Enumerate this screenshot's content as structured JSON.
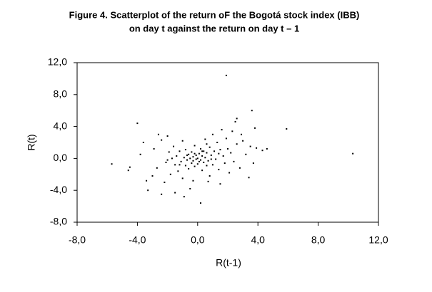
{
  "chart_data": {
    "type": "scatter",
    "title": [
      "Figure 4. Scatterplot of the return oF the Bogotá stock index (IBB)",
      "on day  t against the return on day  t – 1"
    ],
    "xlabel": "R(t-1)",
    "ylabel": "R(t)",
    "color": "#000000",
    "xlim": [
      -8,
      12
    ],
    "ylim": [
      -8,
      12
    ],
    "xticks": [
      {
        "value": -8,
        "label": "-8,0"
      },
      {
        "value": -4,
        "label": "-4,0"
      },
      {
        "value": 0,
        "label": "0,0"
      },
      {
        "value": 4,
        "label": "4,0"
      },
      {
        "value": 8,
        "label": "8,0"
      },
      {
        "value": 12,
        "label": "12,0"
      }
    ],
    "yticks": [
      {
        "value": -8,
        "label": "-8,0"
      },
      {
        "value": -4,
        "label": "-4,0"
      },
      {
        "value": 0,
        "label": "0,0"
      },
      {
        "value": 4,
        "label": "4,0"
      },
      {
        "value": 8,
        "label": "8,0"
      },
      {
        "value": 12,
        "label": "12,0"
      }
    ],
    "x": [
      1.9,
      10.3,
      3.6,
      5.9,
      -4.0,
      -5.7,
      -4.6,
      -4.5,
      0.2,
      2.6,
      2.5,
      -3.3,
      -3.6,
      -3.4,
      -3.0,
      -2.9,
      -2.6,
      -2.7,
      -2.4,
      -2.2,
      -2.0,
      -2.1,
      -1.9,
      -1.8,
      -1.6,
      -1.5,
      -1.4,
      -1.3,
      -1.2,
      -1.1,
      -1.0,
      -1.0,
      -0.9,
      -0.8,
      -0.8,
      -0.7,
      -0.6,
      -0.6,
      -0.5,
      -0.5,
      -0.4,
      -0.4,
      -0.3,
      -0.3,
      -0.2,
      -0.2,
      -0.1,
      -0.1,
      0.0,
      0.0,
      0.1,
      0.1,
      0.2,
      0.2,
      0.3,
      0.3,
      0.4,
      0.4,
      0.5,
      0.5,
      0.6,
      0.6,
      0.7,
      0.8,
      0.8,
      0.9,
      1.0,
      1.0,
      1.1,
      1.2,
      1.3,
      1.4,
      1.5,
      1.6,
      1.7,
      1.8,
      1.9,
      2.0,
      2.1,
      2.2,
      2.3,
      2.4,
      2.6,
      2.8,
      3.0,
      3.2,
      3.4,
      3.5,
      3.8,
      3.9,
      4.3,
      4.6,
      3.7,
      2.9,
      -0.9,
      -1.5,
      -2.4,
      -0.3,
      1.5,
      0.7,
      -3.8,
      -2.0,
      -1.7,
      -0.2,
      0.3,
      -0.7,
      0.9,
      1.4,
      -1.2,
      0.6
    ],
    "y": [
      10.4,
      0.6,
      6.0,
      3.7,
      4.4,
      -0.7,
      -1.5,
      -1.1,
      -5.6,
      5.0,
      4.6,
      -4.0,
      2.0,
      -2.8,
      -2.2,
      1.2,
      3.0,
      -1.2,
      -4.5,
      -3.0,
      2.8,
      -0.5,
      0.8,
      -2.0,
      1.5,
      -0.8,
      0.3,
      -1.6,
      0.9,
      -0.4,
      2.2,
      -2.5,
      0.1,
      -0.9,
      1.1,
      -0.2,
      0.5,
      -1.3,
      0.0,
      -3.8,
      0.8,
      -0.6,
      0.2,
      -0.3,
      1.6,
      -1.0,
      0.4,
      -0.1,
      0.0,
      -0.7,
      0.6,
      -0.4,
      1.2,
      -0.2,
      0.3,
      -1.5,
      0.9,
      -0.5,
      0.1,
      2.4,
      -0.9,
      0.7,
      -0.3,
      1.4,
      -2.2,
      0.4,
      3.0,
      -0.8,
      0.9,
      -0.1,
      2.0,
      -1.4,
      1.1,
      3.6,
      0.3,
      -0.6,
      2.5,
      1.2,
      -1.8,
      0.7,
      3.4,
      -0.4,
      1.8,
      -1.2,
      2.2,
      0.5,
      -2.4,
      1.5,
      3.8,
      1.3,
      1.0,
      1.2,
      -0.6,
      3.0,
      -4.8,
      -4.3,
      2.3,
      -2.8,
      -3.2,
      -2.9,
      0.5,
      -0.2,
      0.0,
      0.6,
      0.9,
      0.4,
      -0.1,
      0.6,
      -0.8,
      1.8
    ]
  }
}
